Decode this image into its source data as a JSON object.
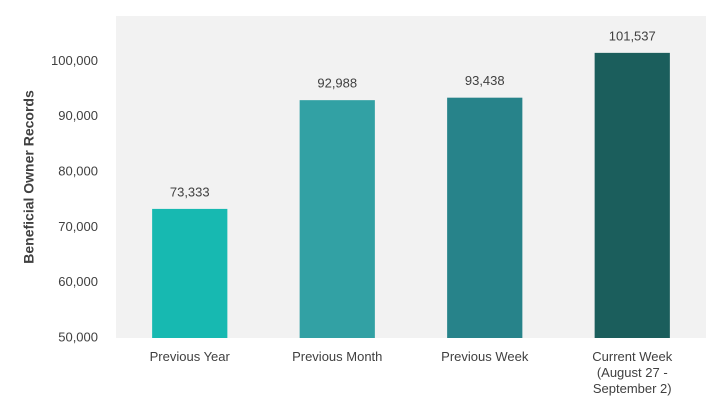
{
  "chart_data": {
    "type": "bar",
    "y_label": "Beneficial Owner Records",
    "categories": [
      "Previous Year",
      "Previous Month",
      "Previous Week",
      "Current Week\n(August 27 -\nSeptember 2)"
    ],
    "values": [
      73333,
      92988,
      93438,
      101537
    ],
    "value_labels": [
      "73,333",
      "92,988",
      "93,438",
      "101,537"
    ],
    "colors": [
      "#17b9b1",
      "#32a1a4",
      "#27838a",
      "#1b5e5c"
    ],
    "ylim": [
      50000,
      108200
    ],
    "yticks": [
      {
        "value": 50000,
        "label": "50,000"
      },
      {
        "value": 60000,
        "label": "60,000"
      },
      {
        "value": 70000,
        "label": "70,000"
      },
      {
        "value": 80000,
        "label": "80,000"
      },
      {
        "value": 90000,
        "label": "90,000"
      },
      {
        "value": 100000,
        "label": "100,000"
      }
    ],
    "grid": false
  }
}
